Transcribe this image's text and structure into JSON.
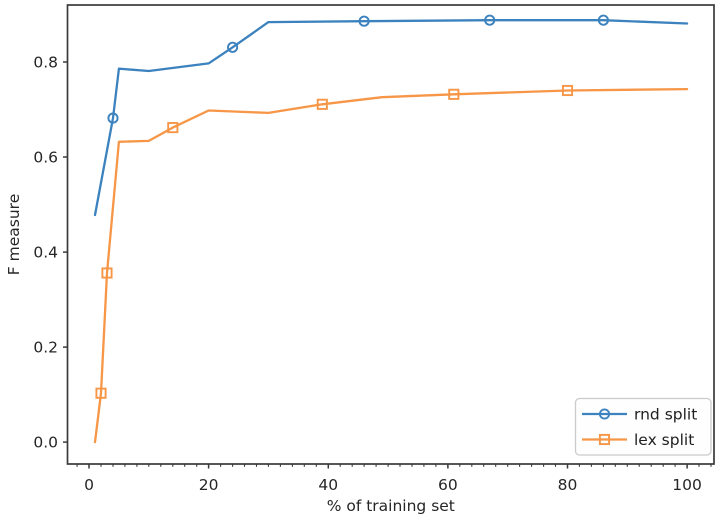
{
  "figure": {
    "background": "#ffffff",
    "axis_color": "#3a3a3a",
    "text_color": "#262626",
    "legend_border_color": "#cbcbcb",
    "legend_bg_color": "#fefefe"
  },
  "chart_data": {
    "type": "line",
    "title": "",
    "xlabel": "% of training set",
    "ylabel": "F measure",
    "xlim": [
      -3.6,
      104.5
    ],
    "ylim": [
      -0.046,
      0.92
    ],
    "grid": false,
    "x_ticks": [
      [
        0,
        "0"
      ],
      [
        20,
        "20"
      ],
      [
        40,
        "40"
      ],
      [
        60,
        "60"
      ],
      [
        80,
        "80"
      ],
      [
        100,
        "100"
      ]
    ],
    "y_ticks": [
      [
        0,
        "0.0"
      ],
      [
        0.2,
        "0.2"
      ],
      [
        0.4,
        "0.4"
      ],
      [
        0.6,
        "0.6"
      ],
      [
        0.8,
        "0.8"
      ]
    ],
    "x_minor_step": 2,
    "legend": {
      "position": "lower right",
      "items": [
        "rnd split",
        "lex split"
      ]
    },
    "series": [
      {
        "name": "rnd split",
        "color": "#3c82be",
        "marker": "circle",
        "points": [
          [
            1,
            0.478
          ],
          [
            4,
            0.682
          ],
          [
            5,
            0.786
          ],
          [
            10,
            0.781
          ],
          [
            20,
            0.797
          ],
          [
            24,
            0.831
          ],
          [
            30,
            0.884
          ],
          [
            46,
            0.886
          ],
          [
            67,
            0.888
          ],
          [
            86,
            0.888
          ],
          [
            100,
            0.881
          ]
        ],
        "marker_points": [
          [
            4,
            0.682
          ],
          [
            24,
            0.831
          ],
          [
            46,
            0.886
          ],
          [
            67,
            0.888
          ],
          [
            86,
            0.888
          ]
        ]
      },
      {
        "name": "lex split",
        "color": "#f69646",
        "marker": "square",
        "points": [
          [
            1,
            0.0
          ],
          [
            2,
            0.103
          ],
          [
            3,
            0.356
          ],
          [
            5,
            0.632
          ],
          [
            10,
            0.634
          ],
          [
            14,
            0.662
          ],
          [
            20,
            0.698
          ],
          [
            30,
            0.693
          ],
          [
            39,
            0.711
          ],
          [
            49,
            0.726
          ],
          [
            61,
            0.732
          ],
          [
            80,
            0.74
          ],
          [
            100,
            0.743
          ]
        ],
        "marker_points": [
          [
            2,
            0.103
          ],
          [
            3,
            0.356
          ],
          [
            14,
            0.662
          ],
          [
            39,
            0.711
          ],
          [
            61,
            0.732
          ],
          [
            80,
            0.74
          ]
        ]
      }
    ]
  }
}
